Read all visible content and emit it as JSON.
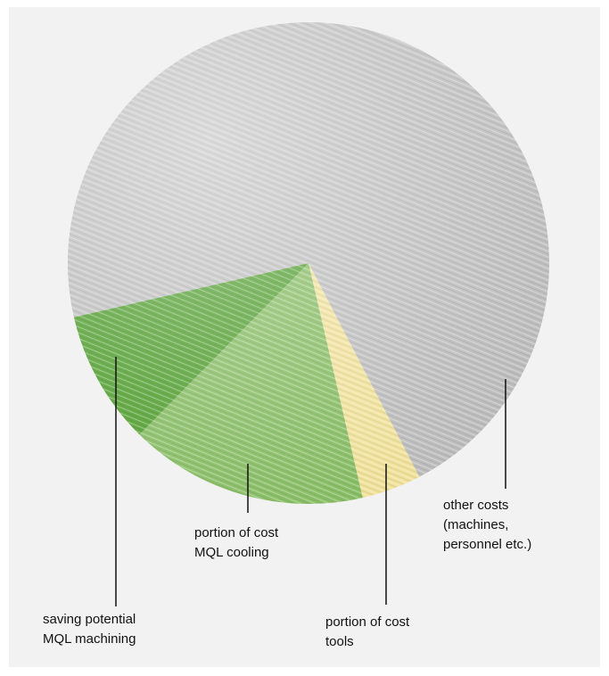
{
  "chart_data": {
    "type": "pie",
    "categories": [
      "other costs\n(machines,\npersonnel etc.)",
      "portion of cost\ntools",
      "portion of cost\nMQL cooling",
      "saving potential\nMQL machining"
    ],
    "values": [
      71,
      4,
      16,
      9
    ],
    "colors": [
      "#bdbdbd",
      "#f1e29a",
      "#86bd62",
      "#4f9e2c"
    ]
  }
}
